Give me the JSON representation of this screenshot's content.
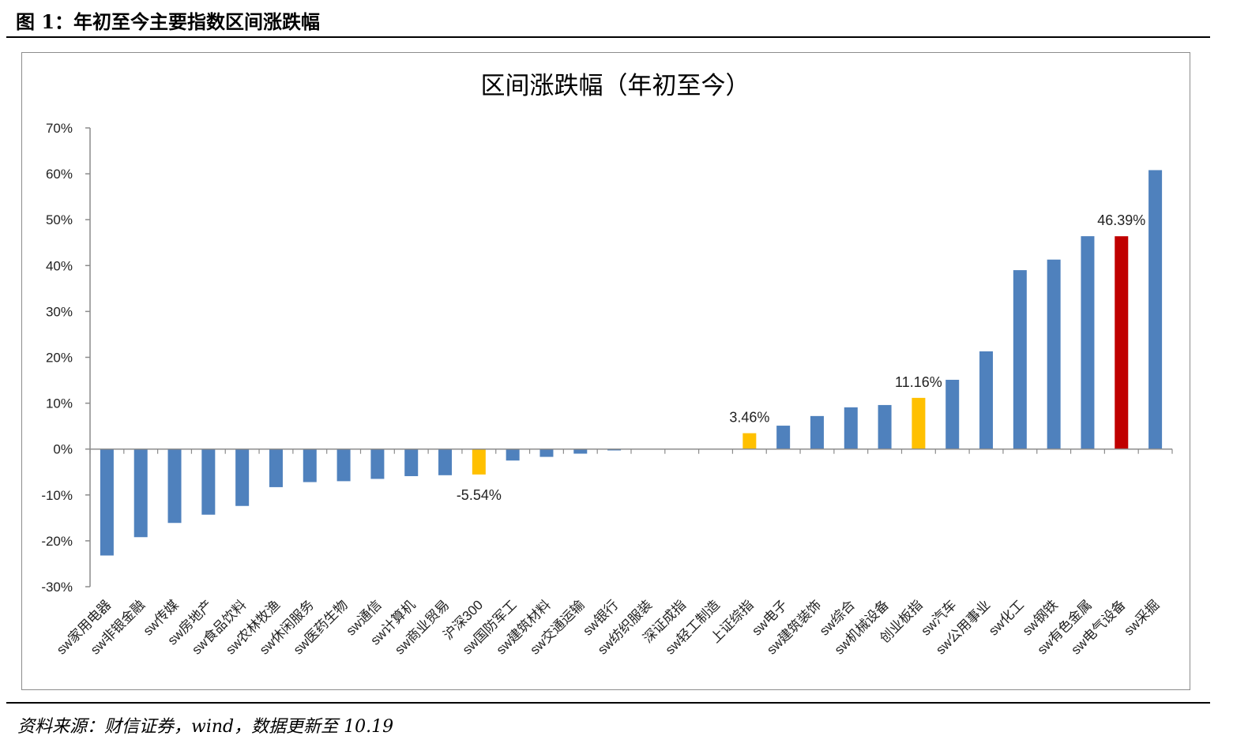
{
  "figure": {
    "title": "图 1：年初至今主要指数区间涨跌幅",
    "source": "资料来源：财信证券，wind，数据更新至 10.19"
  },
  "colors": {
    "default": "#4f81bd",
    "index": "#ffc000",
    "highlight": "#c00000",
    "axis": "#8c8c8c"
  },
  "chart_data": {
    "type": "bar",
    "title": "区间涨跌幅（年初至今）",
    "xlabel": "",
    "ylabel": "",
    "ylim": [
      -30,
      70
    ],
    "yticks": [
      "70%",
      "60%",
      "50%",
      "40%",
      "30%",
      "20%",
      "10%",
      "0%",
      "-10%",
      "-20%",
      "-30%"
    ],
    "ytick_values": [
      70,
      60,
      50,
      40,
      30,
      20,
      10,
      0,
      -10,
      -20,
      -30
    ],
    "unit": "%",
    "grid": false,
    "legend": "none",
    "categories": [
      "sw家用电器",
      "sw非银金融",
      "sw传媒",
      "sw房地产",
      "sw食品饮料",
      "sw农林牧渔",
      "sw休闲服务",
      "sw医药生物",
      "sw通信",
      "sw计算机",
      "sw商业贸易",
      "沪深300",
      "sw国防军工",
      "sw建筑材料",
      "sw交通运输",
      "sw银行",
      "sw纺织服装",
      "深证成指",
      "sw轻工制造",
      "上证综指",
      "sw电子",
      "sw建筑装饰",
      "sw综合",
      "sw机械设备",
      "创业板指",
      "sw汽车",
      "sw公用事业",
      "sw化工",
      "sw钢铁",
      "sw有色金属",
      "sw电气设备",
      "sw采掘"
    ],
    "values": [
      -23.2,
      -19.2,
      -16.1,
      -14.3,
      -12.4,
      -8.3,
      -7.2,
      -7.0,
      -6.5,
      -5.9,
      -5.7,
      -5.54,
      -2.5,
      -1.7,
      -1.0,
      -0.3,
      0.0,
      0.0,
      0.0,
      3.46,
      5.1,
      7.2,
      9.1,
      9.6,
      11.16,
      15.1,
      21.3,
      39.0,
      41.3,
      46.4,
      46.39,
      60.8
    ],
    "bar_colors": [
      "default",
      "default",
      "default",
      "default",
      "default",
      "default",
      "default",
      "default",
      "default",
      "default",
      "default",
      "index",
      "default",
      "default",
      "default",
      "default",
      "default",
      "default",
      "default",
      "index",
      "default",
      "default",
      "default",
      "default",
      "index",
      "default",
      "default",
      "default",
      "default",
      "default",
      "highlight",
      "default"
    ],
    "data_labels": [
      {
        "index": 11,
        "text": "-5.54%"
      },
      {
        "index": 19,
        "text": "3.46%"
      },
      {
        "index": 24,
        "text": "11.16%"
      },
      {
        "index": 30,
        "text": "46.39%"
      }
    ]
  }
}
